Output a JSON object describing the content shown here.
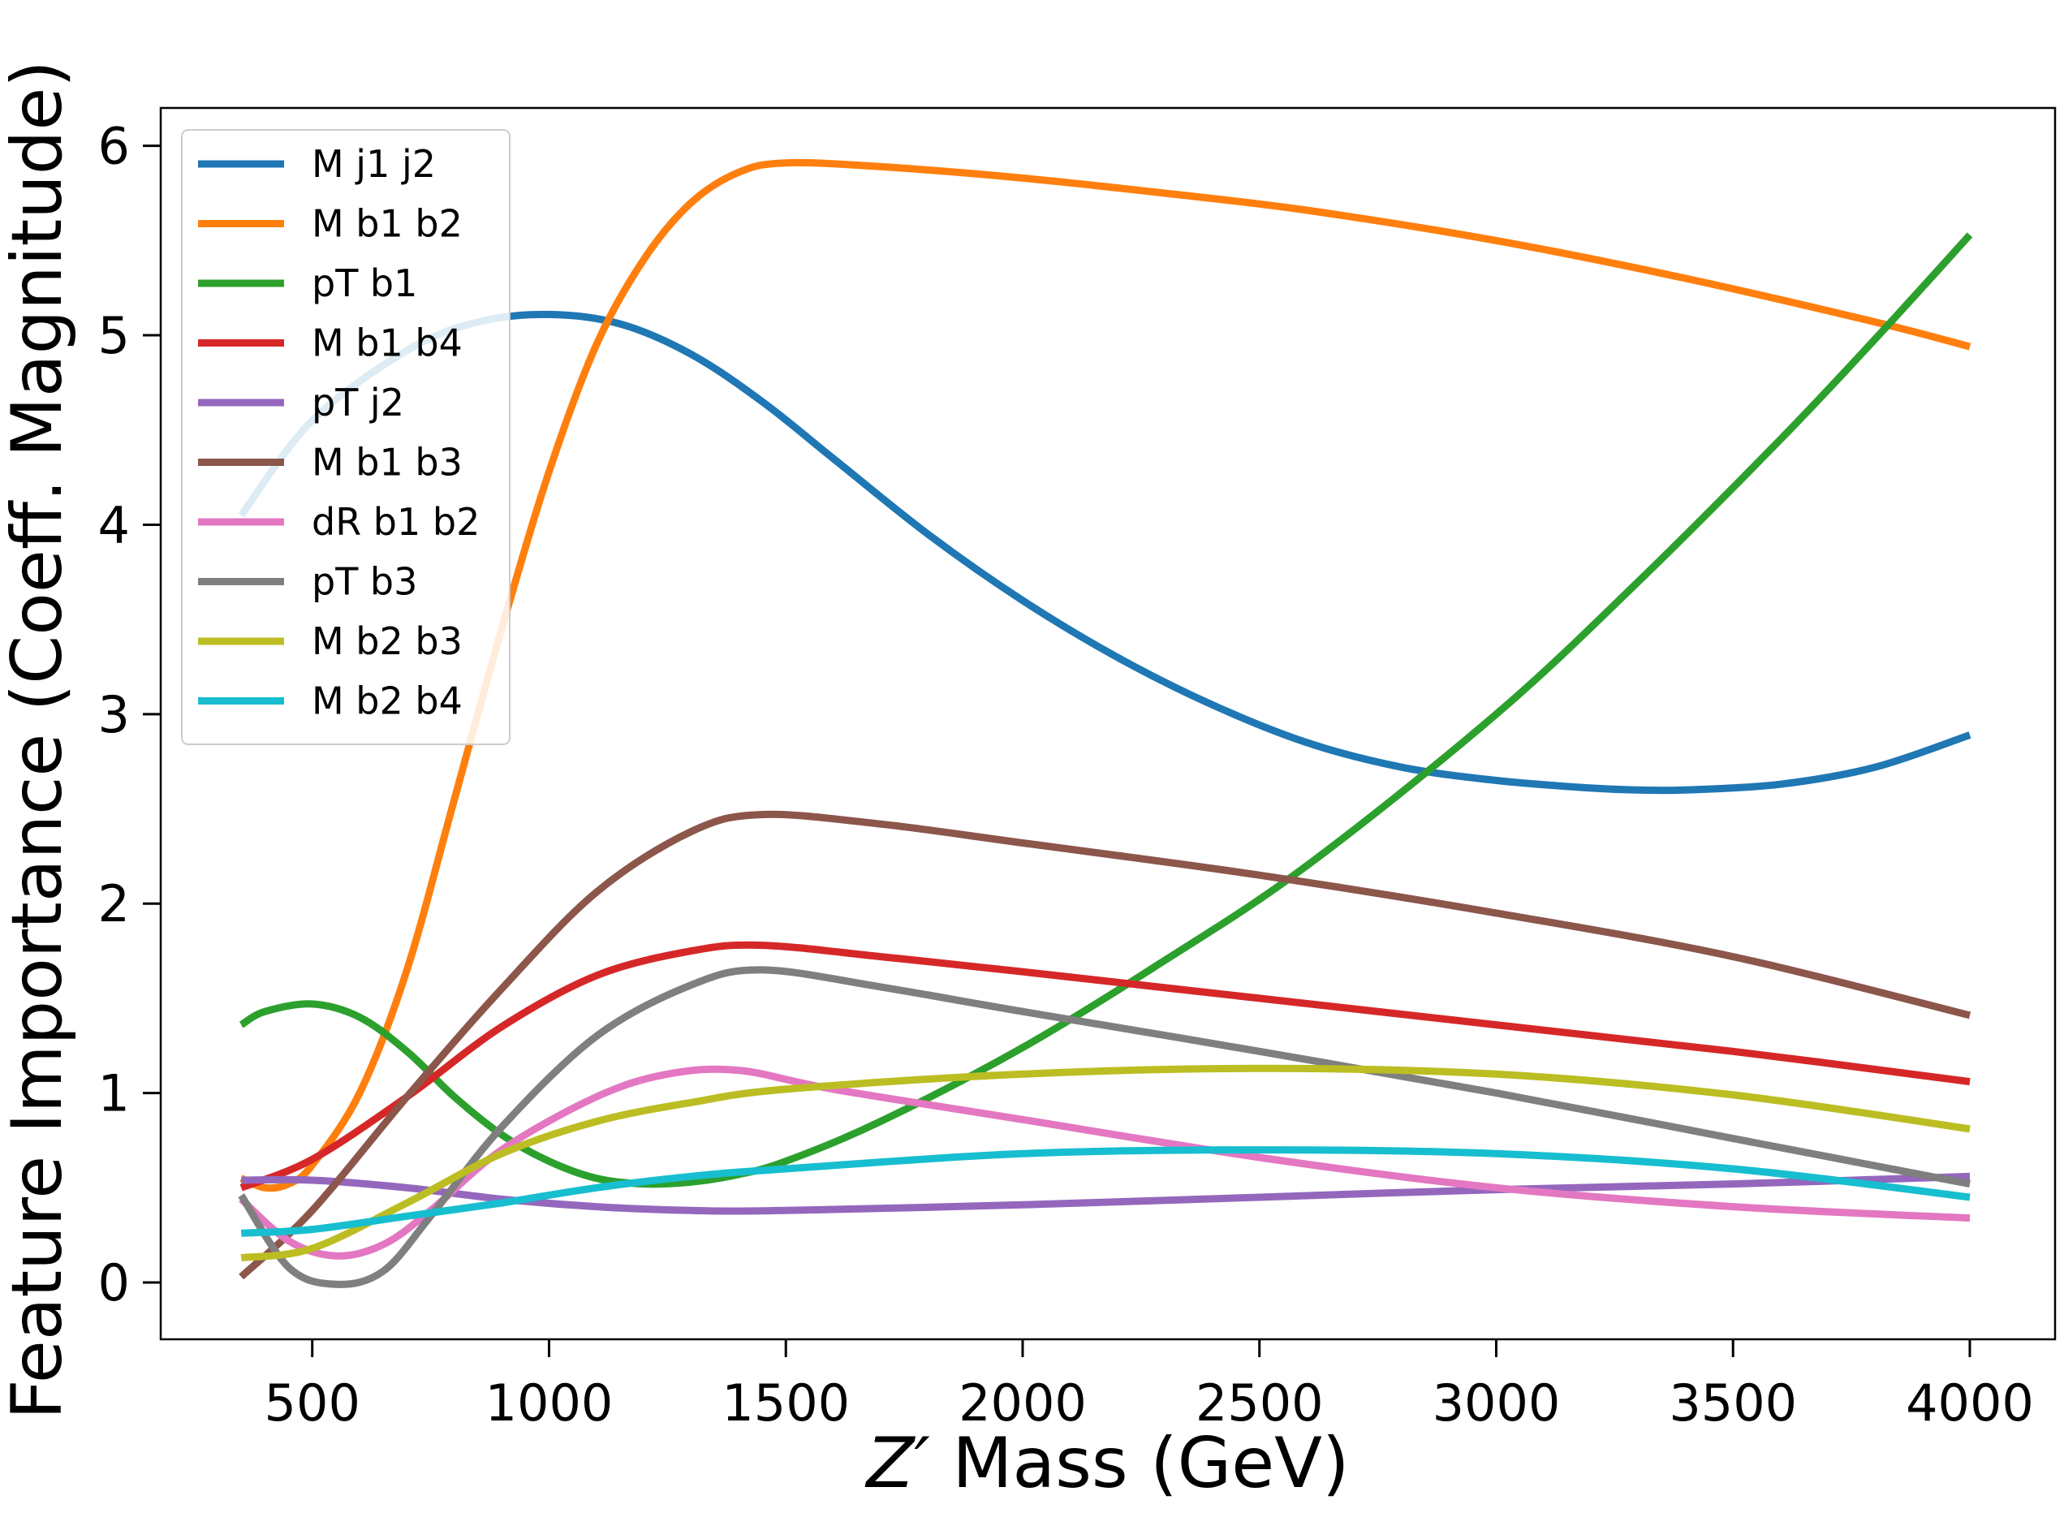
{
  "chart_data": {
    "type": "line",
    "title": "",
    "xlabel_prefix": "Z′",
    "xlabel_suffix": " Mass (GeV)",
    "ylabel": "Feature Importance (Coeff. Magnitude)",
    "xlim": [
      180,
      4180
    ],
    "ylim": [
      -0.3,
      6.2
    ],
    "xticks": [
      500,
      1000,
      1500,
      2000,
      2500,
      3000,
      3500,
      4000
    ],
    "yticks": [
      0,
      1,
      2,
      3,
      4,
      5,
      6
    ],
    "legend_position": "top-left",
    "series": [
      {
        "name": "M j1 j2",
        "color": "#1f77b4",
        "x": [
          350,
          500,
          700,
          850,
          1000,
          1150,
          1300,
          1450,
          1600,
          1800,
          2000,
          2200,
          2400,
          2600,
          2800,
          3000,
          3200,
          3300,
          3400,
          3600,
          3800,
          4000
        ],
        "y": [
          4.05,
          4.55,
          4.92,
          5.07,
          5.11,
          5.06,
          4.9,
          4.65,
          4.35,
          3.95,
          3.6,
          3.3,
          3.05,
          2.85,
          2.72,
          2.65,
          2.61,
          2.6,
          2.6,
          2.63,
          2.72,
          2.89
        ]
      },
      {
        "name": "M b1 b2",
        "color": "#ff7f0e",
        "x": [
          350,
          400,
          450,
          500,
          600,
          700,
          800,
          900,
          1000,
          1100,
          1200,
          1300,
          1400,
          1500,
          1700,
          2000,
          2300,
          2600,
          3000,
          3400,
          3800,
          4000
        ],
        "y": [
          0.55,
          0.5,
          0.52,
          0.62,
          1.0,
          1.65,
          2.55,
          3.45,
          4.28,
          4.95,
          5.4,
          5.7,
          5.86,
          5.91,
          5.89,
          5.83,
          5.75,
          5.66,
          5.5,
          5.3,
          5.07,
          4.94
        ]
      },
      {
        "name": "pT b1",
        "color": "#2ca02c",
        "x": [
          350,
          400,
          500,
          600,
          700,
          800,
          900,
          1000,
          1100,
          1200,
          1300,
          1400,
          1500,
          1700,
          2000,
          2300,
          2600,
          3000,
          3300,
          3600,
          3800,
          4000
        ],
        "y": [
          1.36,
          1.43,
          1.47,
          1.4,
          1.22,
          0.98,
          0.78,
          0.64,
          0.55,
          0.52,
          0.53,
          0.57,
          0.64,
          0.85,
          1.24,
          1.7,
          2.2,
          3.0,
          3.7,
          4.45,
          4.98,
          5.53
        ]
      },
      {
        "name": "M b1 b4",
        "color": "#d62728",
        "x": [
          350,
          500,
          700,
          900,
          1100,
          1300,
          1450,
          1700,
          2000,
          2500,
          3000,
          3500,
          4000
        ],
        "y": [
          0.5,
          0.65,
          0.98,
          1.35,
          1.62,
          1.75,
          1.78,
          1.72,
          1.64,
          1.5,
          1.36,
          1.22,
          1.06
        ]
      },
      {
        "name": "pT j2",
        "color": "#9467bd",
        "x": [
          350,
          500,
          700,
          900,
          1100,
          1300,
          1500,
          2000,
          2500,
          3000,
          3500,
          4000
        ],
        "y": [
          0.54,
          0.54,
          0.5,
          0.44,
          0.4,
          0.38,
          0.38,
          0.41,
          0.45,
          0.49,
          0.52,
          0.56
        ]
      },
      {
        "name": "M b1 b3",
        "color": "#8c564b",
        "x": [
          350,
          500,
          700,
          900,
          1100,
          1300,
          1450,
          1700,
          2000,
          2500,
          3000,
          3500,
          4000
        ],
        "y": [
          0.03,
          0.38,
          0.98,
          1.55,
          2.06,
          2.38,
          2.47,
          2.42,
          2.32,
          2.15,
          1.95,
          1.72,
          1.41
        ]
      },
      {
        "name": "dR b1 b2",
        "color": "#e377c2",
        "x": [
          350,
          450,
          550,
          650,
          750,
          900,
          1100,
          1250,
          1400,
          1600,
          2000,
          2500,
          3000,
          3500,
          4000
        ],
        "y": [
          0.44,
          0.22,
          0.14,
          0.2,
          0.38,
          0.7,
          0.98,
          1.1,
          1.12,
          1.02,
          0.86,
          0.66,
          0.5,
          0.4,
          0.34
        ]
      },
      {
        "name": "pT b3",
        "color": "#7f7f7f",
        "x": [
          350,
          450,
          550,
          650,
          750,
          900,
          1100,
          1300,
          1450,
          1700,
          2000,
          2500,
          3000,
          3500,
          4000
        ],
        "y": [
          0.46,
          0.08,
          -0.01,
          0.06,
          0.35,
          0.82,
          1.3,
          1.57,
          1.65,
          1.56,
          1.43,
          1.22,
          1.0,
          0.76,
          0.52
        ]
      },
      {
        "name": "M b2 b3",
        "color": "#bcbd22",
        "x": [
          350,
          500,
          700,
          900,
          1100,
          1300,
          1500,
          2000,
          2500,
          3000,
          3500,
          4000
        ],
        "y": [
          0.13,
          0.18,
          0.42,
          0.68,
          0.85,
          0.95,
          1.02,
          1.1,
          1.13,
          1.1,
          0.99,
          0.81
        ]
      },
      {
        "name": "M b2 b4",
        "color": "#17becf",
        "x": [
          350,
          500,
          700,
          900,
          1100,
          1300,
          1500,
          2000,
          2500,
          3000,
          3500,
          4000
        ],
        "y": [
          0.26,
          0.28,
          0.35,
          0.42,
          0.5,
          0.56,
          0.6,
          0.68,
          0.7,
          0.68,
          0.6,
          0.45
        ]
      }
    ]
  }
}
